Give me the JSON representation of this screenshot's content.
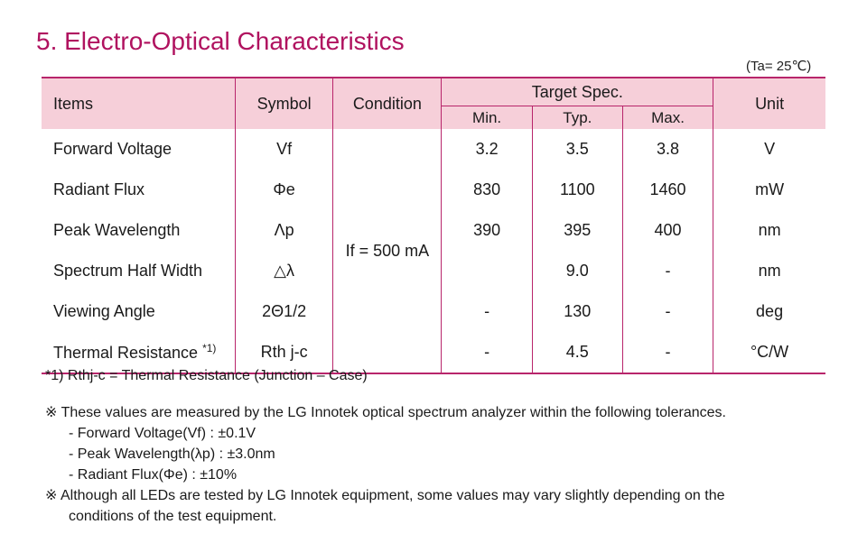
{
  "title": "5. Electro-Optical Characteristics",
  "ambient_condition": "(Ta= 25℃)",
  "table": {
    "headers": {
      "items": "Items",
      "symbol": "Symbol",
      "condition": "Condition",
      "target_spec": "Target Spec.",
      "min": "Min.",
      "typ": "Typ.",
      "max": "Max.",
      "unit": "Unit"
    },
    "condition_value": "If = 500 mA",
    "rows": [
      {
        "item": "Forward Voltage",
        "item_note": "",
        "symbol": "Vf",
        "min": "3.2",
        "typ": "3.5",
        "max": "3.8",
        "unit": "V"
      },
      {
        "item": "Radiant Flux",
        "item_note": "",
        "symbol": "Φe",
        "min": "830",
        "typ": "1100",
        "max": "1460",
        "unit": "mW"
      },
      {
        "item": "Peak Wavelength",
        "item_note": "",
        "symbol": "Λp",
        "min": "390",
        "typ": "395",
        "max": "400",
        "unit": "nm"
      },
      {
        "item": "Spectrum Half Width",
        "item_note": "",
        "symbol": "△λ",
        "min": "",
        "typ": "9.0",
        "max": "-",
        "unit": "nm"
      },
      {
        "item": "Viewing Angle",
        "item_note": "",
        "symbol": "2Θ1/2",
        "min": "-",
        "typ": "130",
        "max": "-",
        "unit": "deg"
      },
      {
        "item": "Thermal Resistance",
        "item_note": "*1)",
        "symbol": "Rth j-c",
        "min": "-",
        "typ": "4.5",
        "max": "-",
        "unit": "°C/W"
      }
    ]
  },
  "footnote": "*1) Rthj-c = Thermal Resistance (Junction – Case)",
  "notes": {
    "note1": "※ These values are measured by the LG Innotek optical spectrum analyzer within the following tolerances.",
    "tolerances": [
      "- Forward Voltage(Vf) : ±0.1V",
      "- Peak Wavelength(λp) : ±3.0nm",
      "- Radiant Flux(Φe) : ±10%"
    ],
    "note2_line1": "※ Although all LEDs are tested by LG Innotek equipment, some values may vary slightly depending on the",
    "note2_line2": "conditions of the test equipment."
  }
}
